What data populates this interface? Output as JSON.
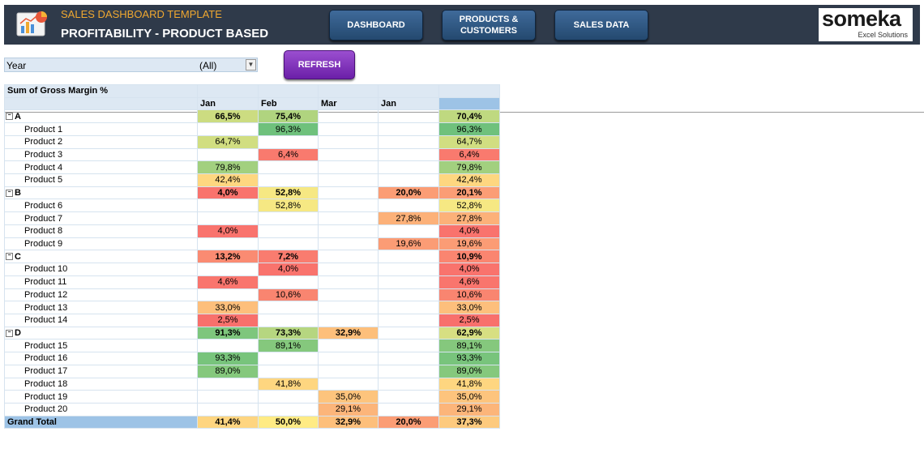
{
  "header": {
    "subtitle": "SALES DASHBOARD TEMPLATE",
    "title": "PROFITABILITY - PRODUCT BASED",
    "nav": [
      "DASHBOARD",
      "PRODUCTS &\nCUSTOMERS",
      "SALES DATA"
    ],
    "brand_name": "someka",
    "brand_sub": "Excel Solutions"
  },
  "filter": {
    "label": "Year",
    "value": "(All)"
  },
  "refresh_label": "REFRESH",
  "pivot": {
    "title": "Sum of Gross Margin %",
    "columns": [
      "Jan",
      "Feb",
      "Mar",
      "Jan",
      ""
    ],
    "rows": [
      {
        "type": "group",
        "label": "A",
        "values": [
          "66,5%",
          "75,4%",
          "",
          "",
          "70,4%"
        ]
      },
      {
        "type": "product",
        "label": "Product 1",
        "values": [
          "",
          "96,3%",
          "",
          "",
          "96,3%"
        ]
      },
      {
        "type": "product",
        "label": "Product 2",
        "values": [
          "64,7%",
          "",
          "",
          "",
          "64,7%"
        ]
      },
      {
        "type": "product",
        "label": "Product 3",
        "values": [
          "",
          "6,4%",
          "",
          "",
          "6,4%"
        ]
      },
      {
        "type": "product",
        "label": "Product 4",
        "values": [
          "79,8%",
          "",
          "",
          "",
          "79,8%"
        ]
      },
      {
        "type": "product",
        "label": "Product 5",
        "values": [
          "42,4%",
          "",
          "",
          "",
          "42,4%"
        ]
      },
      {
        "type": "group",
        "label": "B",
        "values": [
          "4,0%",
          "52,8%",
          "",
          "20,0%",
          "20,1%"
        ]
      },
      {
        "type": "product",
        "label": "Product 6",
        "values": [
          "",
          "52,8%",
          "",
          "",
          "52,8%"
        ]
      },
      {
        "type": "product",
        "label": "Product 7",
        "values": [
          "",
          "",
          "",
          "27,8%",
          "27,8%"
        ]
      },
      {
        "type": "product",
        "label": "Product 8",
        "values": [
          "4,0%",
          "",
          "",
          "",
          "4,0%"
        ]
      },
      {
        "type": "product",
        "label": "Product 9",
        "values": [
          "",
          "",
          "",
          "19,6%",
          "19,6%"
        ]
      },
      {
        "type": "group",
        "label": "C",
        "values": [
          "13,2%",
          "7,2%",
          "",
          "",
          "10,9%"
        ]
      },
      {
        "type": "product",
        "label": "Product 10",
        "values": [
          "",
          "4,0%",
          "",
          "",
          "4,0%"
        ]
      },
      {
        "type": "product",
        "label": "Product 11",
        "values": [
          "4,6%",
          "",
          "",
          "",
          "4,6%"
        ]
      },
      {
        "type": "product",
        "label": "Product 12",
        "values": [
          "",
          "10,6%",
          "",
          "",
          "10,6%"
        ]
      },
      {
        "type": "product",
        "label": "Product 13",
        "values": [
          "33,0%",
          "",
          "",
          "",
          "33,0%"
        ]
      },
      {
        "type": "product",
        "label": "Product 14",
        "values": [
          "2,5%",
          "",
          "",
          "",
          "2,5%"
        ]
      },
      {
        "type": "group",
        "label": "D",
        "values": [
          "91,3%",
          "73,3%",
          "32,9%",
          "",
          "62,9%"
        ]
      },
      {
        "type": "product",
        "label": "Product 15",
        "values": [
          "",
          "89,1%",
          "",
          "",
          "89,1%"
        ]
      },
      {
        "type": "product",
        "label": "Product 16",
        "values": [
          "93,3%",
          "",
          "",
          "",
          "93,3%"
        ]
      },
      {
        "type": "product",
        "label": "Product 17",
        "values": [
          "89,0%",
          "",
          "",
          "",
          "89,0%"
        ]
      },
      {
        "type": "product",
        "label": "Product 18",
        "values": [
          "",
          "41,8%",
          "",
          "",
          "41,8%"
        ]
      },
      {
        "type": "product",
        "label": "Product 19",
        "values": [
          "",
          "",
          "35,0%",
          "",
          "35,0%"
        ]
      },
      {
        "type": "product",
        "label": "Product 20",
        "values": [
          "",
          "",
          "29,1%",
          "",
          "29,1%"
        ]
      },
      {
        "type": "grand",
        "label": "Grand Total",
        "values": [
          "41,4%",
          "50,0%",
          "32,9%",
          "20,0%",
          "37,3%"
        ]
      }
    ]
  }
}
